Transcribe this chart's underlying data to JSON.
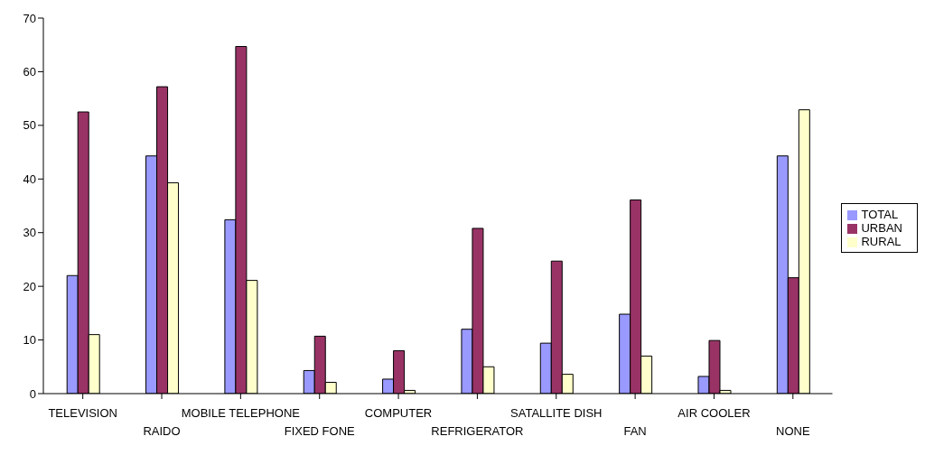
{
  "chart_data": {
    "type": "bar",
    "categories": [
      "TELEVISION",
      "RAIDO",
      "MOBILE TELEPHONE",
      "FIXED FONE",
      "COMPUTER",
      "REFRIGERATOR",
      "SATALLITE DISH",
      "FAN",
      "AIR COOLER",
      "NONE"
    ],
    "series": [
      {
        "name": "TOTAL",
        "color": "#9999ff",
        "values": [
          22.0,
          44.3,
          32.4,
          4.3,
          2.7,
          12.0,
          9.4,
          14.8,
          3.2,
          44.3
        ]
      },
      {
        "name": "URBAN",
        "color": "#993366",
        "values": [
          52.5,
          57.2,
          64.7,
          10.7,
          8.0,
          30.8,
          24.7,
          36.1,
          9.9,
          21.6
        ]
      },
      {
        "name": "RURAL",
        "color": "#ffffcc",
        "values": [
          11.0,
          39.3,
          21.1,
          2.1,
          0.6,
          5.0,
          3.6,
          7.0,
          0.6,
          52.9
        ]
      }
    ],
    "ylim": [
      0,
      70
    ],
    "yticks": [
      0,
      10,
      20,
      30,
      40,
      50,
      60,
      70
    ],
    "grid": false,
    "legend": "right"
  }
}
